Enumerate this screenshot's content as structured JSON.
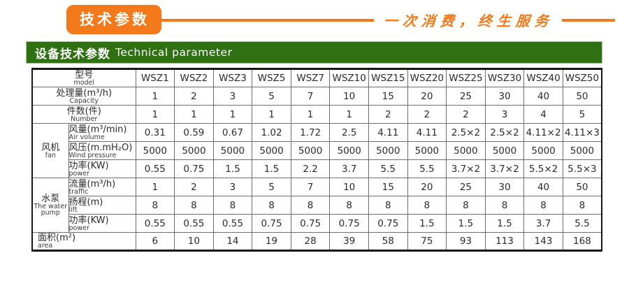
{
  "header": {
    "badge": "技术参数",
    "slogan": "一次消费，终生服务"
  },
  "section": {
    "title_zh": "设备技术参数",
    "title_en": "Technical parameter"
  },
  "colors": {
    "accent_orange": "#f4791a",
    "header_green": "#2e7012"
  },
  "table": {
    "rows": [
      {
        "kind": "header",
        "zh": "型号",
        "en": "model",
        "values": [
          "WSZ1",
          "WSZ2",
          "WSZ3",
          "WSZ5",
          "WSZ7",
          "WSZ10",
          "WSZ15",
          "WSZ20",
          "WSZ25",
          "WSZ30",
          "WSZ40",
          "WSZ50"
        ]
      },
      {
        "zh": "处理量(m³/h)",
        "en": "Capacity",
        "values": [
          "1",
          "2",
          "3",
          "5",
          "7",
          "10",
          "15",
          "20",
          "25",
          "30",
          "40",
          "50"
        ]
      },
      {
        "zh": "件数(件)",
        "en": "Number",
        "values": [
          "1",
          "1",
          "1",
          "1",
          "1",
          "1",
          "2",
          "2",
          "2",
          "3",
          "4",
          "5"
        ]
      },
      {
        "group": {
          "zh": "风机",
          "en": "fan",
          "span": 3
        },
        "zh": "风量(m³/min)",
        "en": "Air volume",
        "values": [
          "0.31",
          "0.59",
          "0.67",
          "1.02",
          "1.72",
          "2.5",
          "4.11",
          "4.11",
          "2.5×2",
          "2.5×2",
          "4.11×2",
          "4.11×3"
        ]
      },
      {
        "zh": "风压(m.mH₂O)",
        "en": "Wind pressure",
        "values": [
          "5000",
          "5000",
          "5000",
          "5000",
          "5000",
          "5000",
          "5000",
          "5000",
          "5000",
          "5000",
          "5000",
          "5000"
        ]
      },
      {
        "zh": "功率(KW)",
        "en": "power",
        "values": [
          "0.55",
          "0.75",
          "1.5",
          "1.5",
          "2.2",
          "3.7",
          "5.5",
          "5.5",
          "3.7×2",
          "3.7×2",
          "5.5×2",
          "5.5×3"
        ]
      },
      {
        "group": {
          "zh": "水泵",
          "en": "The water pump",
          "span": 3
        },
        "zh": "流量(m³/h)",
        "en": "traffic",
        "values": [
          "1",
          "2",
          "3",
          "5",
          "7",
          "10",
          "15",
          "20",
          "25",
          "30",
          "40",
          "50"
        ]
      },
      {
        "zh": "扬程(m)",
        "en": "lift",
        "values": [
          "8",
          "8",
          "8",
          "8",
          "8",
          "8",
          "8",
          "8",
          "8",
          "8",
          "8",
          "8"
        ]
      },
      {
        "zh": "功率(KW)",
        "en": "power",
        "values": [
          "0.55",
          "0.55",
          "0.55",
          "0.75",
          "0.75",
          "0.75",
          "0.75",
          "1.5",
          "1.5",
          "1.5",
          "3.7",
          "5.5"
        ]
      },
      {
        "zh": "面积(m²)",
        "en": "area",
        "values": [
          "6",
          "10",
          "14",
          "19",
          "28",
          "39",
          "58",
          "75",
          "93",
          "113",
          "143",
          "168"
        ]
      }
    ]
  }
}
